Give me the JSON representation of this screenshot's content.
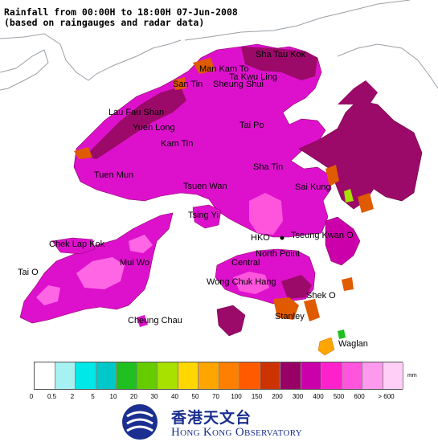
{
  "title": {
    "line1": "Rainfall from 00:00H to 18:00H 07-Jun-2008",
    "line2": "(based on raingauges and radar data)"
  },
  "places": {
    "sha_tau_kok": "Sha Tau Kok",
    "man_kam_to": "Man Kam To",
    "ta_kwu_ling": "Ta Kwu Ling",
    "san_tin": "San Tin",
    "sheung_shui": "Sheung Shui",
    "lau_fau_shan": "Lau Fau Shan",
    "yuen_long": "Yuen Long",
    "kam_tin": "Kam Tin",
    "tai_po": "Tai Po",
    "tuen_mun": "Tuen Mun",
    "sha_tin": "Sha Tin",
    "tsuen_wan": "Tsuen Wan",
    "sai_kung": "Sai Kung",
    "tsing_yi": "Tsing Yi",
    "chek_lap_kok": "Chek Lap Kok",
    "hko": "HKO",
    "tseung_kwan_o": "Tseung Kwan O",
    "mui_wo": "Mui Wo",
    "north_point": "North Point",
    "tai_o": "Tai O",
    "central": "Central",
    "wong_chuk_hang": "Wong Chuk Hang",
    "shek_o": "Shek O",
    "cheung_chau": "Cheung Chau",
    "stanley": "Stanley",
    "waglan": "Waglan"
  },
  "legend": {
    "unit": "mm",
    "colors": [
      "#ffffff",
      "#a6f1f1",
      "#00e8e8",
      "#00c8c8",
      "#1fc01f",
      "#66cc00",
      "#a8e000",
      "#ffd700",
      "#ffa500",
      "#ff7f00",
      "#ff5a00",
      "#cc3300",
      "#990066",
      "#cc00aa",
      "#ff22cc",
      "#ff55dd",
      "#ff99ee",
      "#ffcff7"
    ],
    "ticks": [
      "0",
      "0.5",
      "2",
      "5",
      "10",
      "20",
      "30",
      "40",
      "50",
      "70",
      "100",
      "150",
      "200",
      "300",
      "400",
      "500",
      "600",
      "> 600"
    ]
  },
  "logo": {
    "chinese": "香港天文台",
    "english": "Hong Kong Observatory"
  }
}
